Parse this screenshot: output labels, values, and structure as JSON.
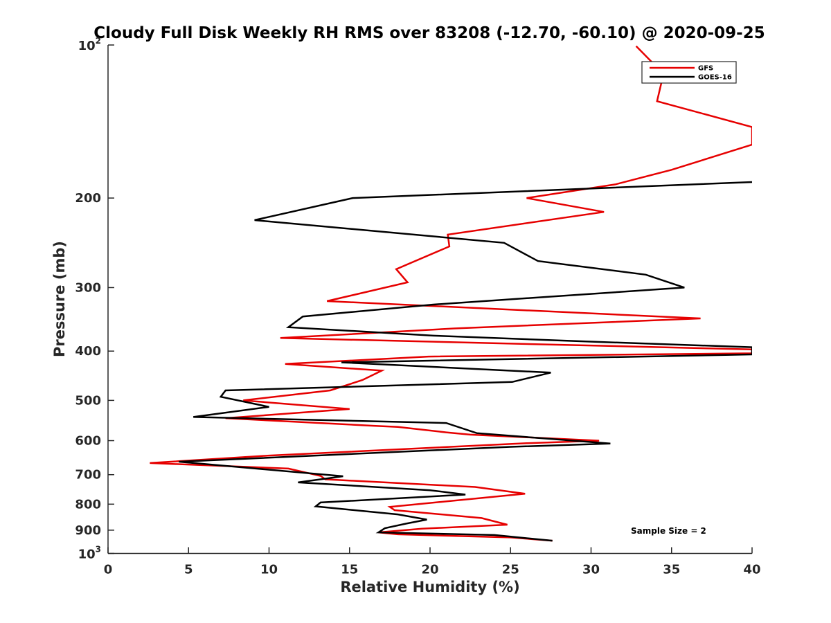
{
  "chart_data": {
    "type": "line",
    "title": "Cloudy Full Disk Weekly RH RMS over 83208 (-12.70, -60.10) @ 2020-09-25",
    "xlabel": "Relative Humidity (%)",
    "ylabel": "Pressure (mb)",
    "xlim": [
      0,
      40
    ],
    "ylim": [
      100,
      1000
    ],
    "yscale": "log",
    "y_reversed": true,
    "xticks": [
      0,
      5,
      10,
      15,
      20,
      25,
      30,
      35,
      40
    ],
    "yticks": [
      {
        "value": 100,
        "base": "10",
        "exp": "2"
      },
      {
        "value": 200,
        "label": "200"
      },
      {
        "value": 300,
        "label": "300"
      },
      {
        "value": 400,
        "label": "400"
      },
      {
        "value": 500,
        "label": "500"
      },
      {
        "value": 600,
        "label": "600"
      },
      {
        "value": 700,
        "label": "700"
      },
      {
        "value": 800,
        "label": "800"
      },
      {
        "value": 900,
        "label": "900"
      },
      {
        "value": 1000,
        "base": "10",
        "exp": "3"
      }
    ],
    "legend_position": "top-right",
    "annotation": "Sample Size = 2",
    "series": [
      {
        "name": "GFS",
        "color": "#e60000",
        "points": [
          [
            32.8,
            100.5
          ],
          [
            34.5,
            114
          ],
          [
            34.1,
            129
          ],
          [
            40.0,
            145
          ],
          [
            40.0,
            157
          ],
          [
            35.0,
            176
          ],
          [
            31.5,
            188
          ],
          [
            26.0,
            200
          ],
          [
            30.8,
            213
          ],
          [
            21.1,
            236
          ],
          [
            21.2,
            249
          ],
          [
            17.9,
            276
          ],
          [
            18.6,
            293
          ],
          [
            13.6,
            319
          ],
          [
            36.8,
            345
          ],
          [
            21.5,
            361
          ],
          [
            10.7,
            377
          ],
          [
            40.0,
            397
          ],
          [
            40.0,
            404
          ],
          [
            19.9,
            410
          ],
          [
            11.0,
            424
          ],
          [
            17.0,
            437
          ],
          [
            15.8,
            456
          ],
          [
            13.8,
            478
          ],
          [
            8.4,
            500
          ],
          [
            15.0,
            520
          ],
          [
            7.3,
            542
          ],
          [
            16.5,
            561
          ],
          [
            18.0,
            564
          ],
          [
            21.0,
            578
          ],
          [
            22.5,
            584
          ],
          [
            30.5,
            600
          ],
          [
            26.0,
            607
          ],
          [
            10.0,
            642
          ],
          [
            2.6,
            664
          ],
          [
            11.2,
            681
          ],
          [
            13.2,
            704
          ],
          [
            13.5,
            715
          ],
          [
            14.3,
            717
          ],
          [
            22.8,
            740
          ],
          [
            25.9,
            763
          ],
          [
            17.5,
            810
          ],
          [
            17.8,
            822
          ],
          [
            23.2,
            852
          ],
          [
            24.8,
            878
          ],
          [
            19.5,
            894
          ],
          [
            16.8,
            909
          ],
          [
            18.0,
            917
          ],
          [
            25.0,
            930
          ],
          [
            27.6,
            944
          ]
        ]
      },
      {
        "name": "GOES-16",
        "color": "#000000",
        "points": [
          [
            40.0,
            186
          ],
          [
            15.2,
            200
          ],
          [
            9.1,
            221
          ],
          [
            24.6,
            245
          ],
          [
            26.7,
            266
          ],
          [
            33.4,
            283
          ],
          [
            35.8,
            300
          ],
          [
            20.2,
            324
          ],
          [
            12.1,
            342
          ],
          [
            11.2,
            359
          ],
          [
            20.2,
            373
          ],
          [
            29.8,
            383
          ],
          [
            40.0,
            393
          ],
          [
            40.0,
            406
          ],
          [
            14.5,
            421
          ],
          [
            27.5,
            441
          ],
          [
            25.1,
            460
          ],
          [
            7.3,
            478
          ],
          [
            7.0,
            492
          ],
          [
            10.0,
            515
          ],
          [
            5.3,
            539
          ],
          [
            21.0,
            554
          ],
          [
            22.9,
            580
          ],
          [
            31.2,
            608
          ],
          [
            25.0,
            617
          ],
          [
            4.4,
            660
          ],
          [
            14.6,
            705
          ],
          [
            11.8,
            725
          ],
          [
            20.0,
            751
          ],
          [
            22.2,
            766
          ],
          [
            13.2,
            794
          ],
          [
            12.9,
            808
          ],
          [
            18.0,
            838
          ],
          [
            19.8,
            858
          ],
          [
            18.5,
            874
          ],
          [
            17.2,
            892
          ],
          [
            16.8,
            909
          ],
          [
            24.0,
            920
          ],
          [
            27.6,
            944
          ]
        ]
      }
    ]
  }
}
